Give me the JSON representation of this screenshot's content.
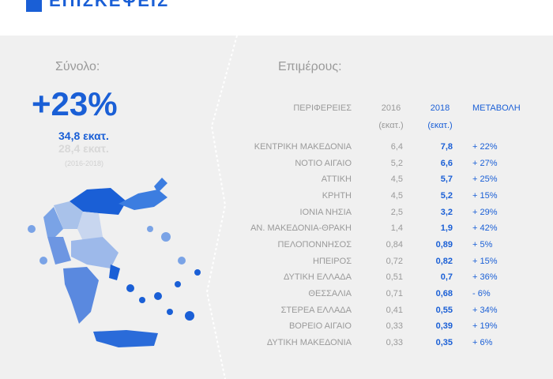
{
  "header": {
    "title": "ΕΠΙΣΚΕΨΕΙΣ"
  },
  "summary": {
    "label": "Σύνολο:",
    "change": "+23%",
    "value_2018": "34,8 εκατ.",
    "value_2016": "28,4 εκατ.",
    "period": "(2016-2018)"
  },
  "detail": {
    "label": "Επιμέρους:"
  },
  "table": {
    "columns": [
      "ΠΕΡΙΦΕΡΕΙΕΣ",
      "2016",
      "2018",
      "ΜΕΤΑΒΟΛΗ"
    ],
    "units": [
      "(εκατ.)",
      "(εκατ.)"
    ],
    "rows": [
      [
        "ΚΕΝΤΡΙΚΗ ΜΑΚΕΔΟΝΙΑ",
        "6,4",
        "7,8",
        "+ 22%"
      ],
      [
        "ΝΟΤΙΟ ΑΙΓΑΙΟ",
        "5,2",
        "6,6",
        "+ 27%"
      ],
      [
        "ΑΤΤΙΚΗ",
        "4,5",
        "5,7",
        "+ 25%"
      ],
      [
        "ΚΡΗΤΗ",
        "4,5",
        "5,2",
        "+ 15%"
      ],
      [
        "ΙΟΝΙΑ ΝΗΣΙΑ",
        "2,5",
        "3,2",
        "+ 29%"
      ],
      [
        "ΑΝ. ΜΑΚΕΔΟΝΙΑ-ΘΡΑΚΗ",
        "1,4",
        "1,9",
        "+ 42%"
      ],
      [
        "ΠΕΛΟΠΟΝΝΗΣΟΣ",
        "0,84",
        "0,89",
        "+ 5%"
      ],
      [
        "ΗΠΕΙΡΟΣ",
        "0,72",
        "0,82",
        "+ 15%"
      ],
      [
        "ΔΥΤΙΚΗ ΕΛΛΑΔΑ",
        "0,51",
        "0,7",
        "+ 36%"
      ],
      [
        "ΘΕΣΣΑΛΙΑ",
        "0,71",
        "0,68",
        "- 6%"
      ],
      [
        "ΣΤΕΡΕΑ ΕΛΛΑΔΑ",
        "0,41",
        "0,55",
        "+ 34%"
      ],
      [
        "ΒΟΡΕΙΟ ΑΙΓΑΙΟ",
        "0,33",
        "0,39",
        "+ 19%"
      ],
      [
        "ΔΥΤΙΚΗ ΜΑΚΕΔΟΝΙΑ",
        "0,33",
        "0,35",
        "+ 6%"
      ]
    ]
  }
}
